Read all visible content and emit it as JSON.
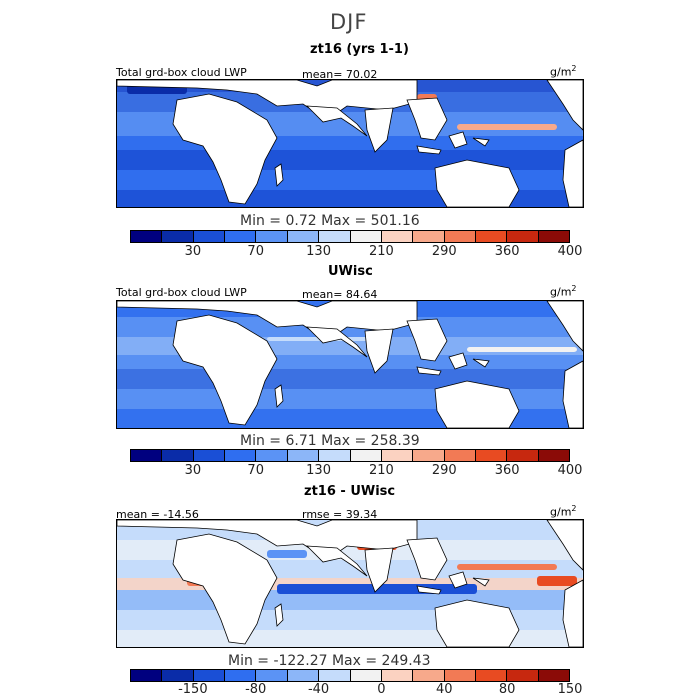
{
  "page": {
    "title": "DJF"
  },
  "panels": [
    {
      "subtitle": "zt16 (yrs 1-1)",
      "left_label": "Total grd-box cloud LWP",
      "mid_label": "mean=   70.02",
      "units_base": "g/m",
      "units_exp": "2",
      "minmax": "Min =    0.72  Max = 501.16",
      "ticks": [
        "30",
        "70",
        "130",
        "210",
        "290",
        "360",
        "400"
      ],
      "colors": [
        "#00007f",
        "#0a2ca8",
        "#1a4fd6",
        "#2f6ef0",
        "#5b93f5",
        "#8cb6f8",
        "#c5dcfb",
        "#f2f2f2",
        "#fbd2c1",
        "#f7a98b",
        "#f27a55",
        "#e84b22",
        "#c7280f",
        "#8b0b07"
      ]
    },
    {
      "subtitle": "UWisc",
      "left_label": "Total grd-box cloud LWP",
      "mid_label": "mean=   84.64",
      "units_base": "g/m",
      "units_exp": "2",
      "minmax": "Min =    6.71  Max = 258.39",
      "ticks": [
        "30",
        "70",
        "130",
        "210",
        "290",
        "360",
        "400"
      ],
      "colors": [
        "#00007f",
        "#0a2ca8",
        "#1a4fd6",
        "#2f6ef0",
        "#5b93f5",
        "#8cb6f8",
        "#c5dcfb",
        "#f2f2f2",
        "#fbd2c1",
        "#f7a98b",
        "#f27a55",
        "#e84b22",
        "#c7280f",
        "#8b0b07"
      ]
    },
    {
      "subtitle": "zt16 - UWisc",
      "left_label": "mean = -14.56",
      "mid_label": "rmse =   39.34",
      "units_base": "g/m",
      "units_exp": "2",
      "minmax": "Min = -122.27  Max = 249.43",
      "ticks": [
        "-150",
        "-80",
        "-40",
        "0",
        "40",
        "80",
        "150"
      ],
      "colors": [
        "#00007f",
        "#0a2ca8",
        "#1a4fd6",
        "#2f6ef0",
        "#5b93f5",
        "#8cb6f8",
        "#c5dcfb",
        "#f2f2f2",
        "#fbd2c1",
        "#f7a98b",
        "#f27a55",
        "#e84b22",
        "#c7280f",
        "#8b0b07"
      ]
    }
  ],
  "map": {
    "ocean_colors": {
      "panel1": "#3a6fe0",
      "panel2": "#4a82ea",
      "panel3": "#c4daf6"
    },
    "land_color": "#ffffff"
  }
}
